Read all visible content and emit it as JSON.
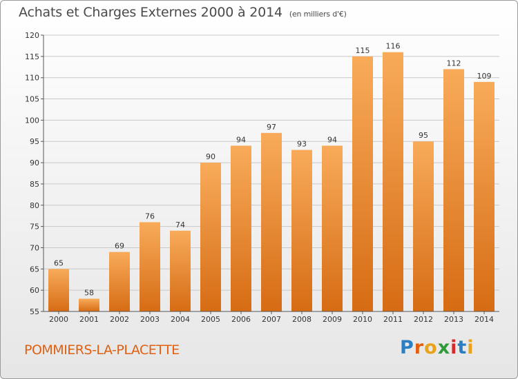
{
  "header": {
    "title": "Achats et Charges Externes 2000 à 2014",
    "unit": "(en milliers d'€)"
  },
  "footer": {
    "town": "POMMIERS-LA-PLACETTE",
    "logo_letters": [
      "P",
      "r",
      "o",
      "x",
      "i",
      "t",
      "i"
    ],
    "logo_colors": [
      "#2a7fc4",
      "#e0600f",
      "#e8a31b",
      "#2f9a3a",
      "#d62a2a",
      "#2a7fc4",
      "#e8a31b"
    ]
  },
  "colors": {
    "bar_light": "#f8ab5a",
    "bar_dark": "#d66c14",
    "grid": "#c8c8c8",
    "axis": "#555555",
    "text": "#333333"
  },
  "chart_data": {
    "type": "bar",
    "categories": [
      "2000",
      "2001",
      "2002",
      "2003",
      "2004",
      "2005",
      "2006",
      "2007",
      "2008",
      "2009",
      "2010",
      "2011",
      "2012",
      "2013",
      "2014"
    ],
    "values": [
      65,
      58,
      69,
      76,
      74,
      90,
      94,
      97,
      93,
      94,
      115,
      116,
      95,
      112,
      109
    ],
    "ylim": [
      55,
      120
    ],
    "yticks": [
      55,
      60,
      65,
      70,
      75,
      80,
      85,
      90,
      95,
      100,
      105,
      110,
      115,
      120
    ],
    "grid": true
  }
}
